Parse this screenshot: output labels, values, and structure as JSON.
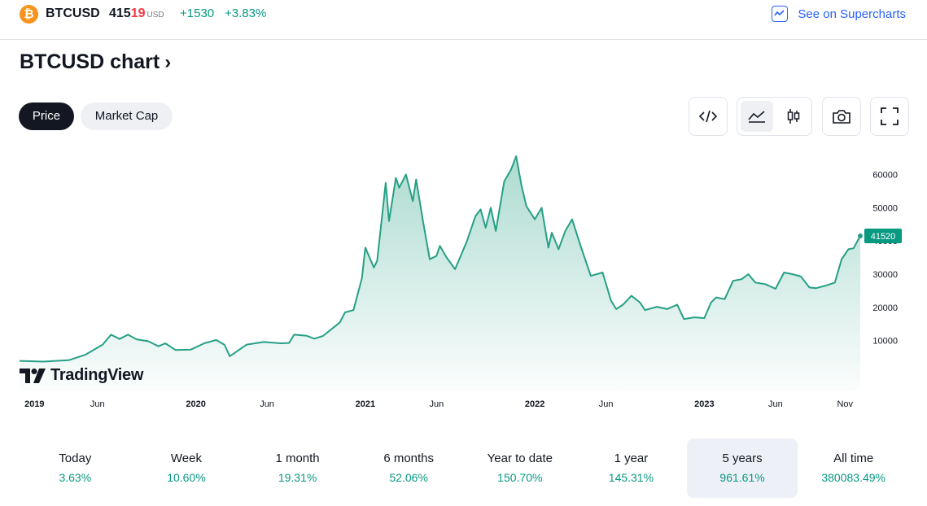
{
  "header": {
    "symbol": "BTCUSD",
    "price_main": "415",
    "price_tail": "19",
    "currency": "USD",
    "change": "+1530",
    "change_percent": "+3.83%",
    "supercharts_label": "See on Supercharts"
  },
  "page_title": "BTCUSD chart",
  "tabs": [
    {
      "label": "Price",
      "active": true
    },
    {
      "label": "Market Cap",
      "active": false
    }
  ],
  "toolbar": {
    "icons": [
      "embed-code-icon",
      "area-chart-icon",
      "candlestick-icon",
      "camera-icon",
      "fullscreen-icon"
    ]
  },
  "branding": {
    "tv_label": "TradingView"
  },
  "colors": {
    "line": "#26a085",
    "up": "#089981",
    "down": "#f23645",
    "accent": "#2962ff"
  },
  "chart_data": {
    "type": "area",
    "x_axis_ticks": [
      "2019",
      "Jun",
      "2020",
      "Jun",
      "2021",
      "Jun",
      "2022",
      "Jun",
      "2023",
      "Jun",
      "Nov"
    ],
    "y_axis_ticks": [
      "10000",
      "20000",
      "30000",
      "40000",
      "50000",
      "60000"
    ],
    "ylim": [
      -5000,
      66000
    ],
    "last_value_label": "41520",
    "series": [
      {
        "values": [
          [
            2018.96,
            3900
          ],
          [
            2019.1,
            3700
          ],
          [
            2019.25,
            4100
          ],
          [
            2019.35,
            5800
          ],
          [
            2019.45,
            8800
          ],
          [
            2019.5,
            11800
          ],
          [
            2019.55,
            10500
          ],
          [
            2019.6,
            11800
          ],
          [
            2019.65,
            10400
          ],
          [
            2019.72,
            9800
          ],
          [
            2019.78,
            8300
          ],
          [
            2019.82,
            9200
          ],
          [
            2019.88,
            7200
          ],
          [
            2019.97,
            7300
          ],
          [
            2020.05,
            9200
          ],
          [
            2020.12,
            10200
          ],
          [
            2020.17,
            8700
          ],
          [
            2020.2,
            5300
          ],
          [
            2020.3,
            8800
          ],
          [
            2020.4,
            9600
          ],
          [
            2020.5,
            9200
          ],
          [
            2020.55,
            9300
          ],
          [
            2020.58,
            11800
          ],
          [
            2020.65,
            11500
          ],
          [
            2020.7,
            10600
          ],
          [
            2020.75,
            11400
          ],
          [
            2020.85,
            15500
          ],
          [
            2020.88,
            18500
          ],
          [
            2020.93,
            19200
          ],
          [
            2020.98,
            28800
          ],
          [
            2021.0,
            38000
          ],
          [
            2021.05,
            32000
          ],
          [
            2021.07,
            34000
          ],
          [
            2021.1,
            48000
          ],
          [
            2021.12,
            57500
          ],
          [
            2021.14,
            46000
          ],
          [
            2021.18,
            59000
          ],
          [
            2021.2,
            56000
          ],
          [
            2021.24,
            60000
          ],
          [
            2021.28,
            52000
          ],
          [
            2021.3,
            58500
          ],
          [
            2021.34,
            46000
          ],
          [
            2021.38,
            34500
          ],
          [
            2021.42,
            35500
          ],
          [
            2021.44,
            38500
          ],
          [
            2021.48,
            35000
          ],
          [
            2021.53,
            31500
          ],
          [
            2021.6,
            40000
          ],
          [
            2021.65,
            47500
          ],
          [
            2021.68,
            49500
          ],
          [
            2021.71,
            44000
          ],
          [
            2021.74,
            50000
          ],
          [
            2021.77,
            43000
          ],
          [
            2021.82,
            58000
          ],
          [
            2021.86,
            61500
          ],
          [
            2021.89,
            65500
          ],
          [
            2021.92,
            57000
          ],
          [
            2021.95,
            50500
          ],
          [
            2022.0,
            46500
          ],
          [
            2022.04,
            50000
          ],
          [
            2022.08,
            38000
          ],
          [
            2022.1,
            42500
          ],
          [
            2022.14,
            37500
          ],
          [
            2022.18,
            43000
          ],
          [
            2022.22,
            46500
          ],
          [
            2022.27,
            38500
          ],
          [
            2022.33,
            29500
          ],
          [
            2022.4,
            30500
          ],
          [
            2022.45,
            22000
          ],
          [
            2022.48,
            19500
          ],
          [
            2022.52,
            20800
          ],
          [
            2022.57,
            23500
          ],
          [
            2022.62,
            21500
          ],
          [
            2022.65,
            19200
          ],
          [
            2022.72,
            20200
          ],
          [
            2022.78,
            19500
          ],
          [
            2022.84,
            20800
          ],
          [
            2022.88,
            16500
          ],
          [
            2022.94,
            17000
          ],
          [
            2023.0,
            16800
          ],
          [
            2023.04,
            21500
          ],
          [
            2023.07,
            23000
          ],
          [
            2023.12,
            22500
          ],
          [
            2023.17,
            28000
          ],
          [
            2023.22,
            28500
          ],
          [
            2023.26,
            30000
          ],
          [
            2023.3,
            27500
          ],
          [
            2023.36,
            27000
          ],
          [
            2023.42,
            25600
          ],
          [
            2023.47,
            30500
          ],
          [
            2023.52,
            30000
          ],
          [
            2023.57,
            29300
          ],
          [
            2023.62,
            26000
          ],
          [
            2023.66,
            25800
          ],
          [
            2023.72,
            26600
          ],
          [
            2023.77,
            27500
          ],
          [
            2023.81,
            34500
          ],
          [
            2023.85,
            37500
          ],
          [
            2023.88,
            37800
          ],
          [
            2023.92,
            41520
          ]
        ]
      }
    ]
  },
  "periods": [
    {
      "label": "Today",
      "value": "3.63%",
      "active": false
    },
    {
      "label": "Week",
      "value": "10.60%",
      "active": false
    },
    {
      "label": "1 month",
      "value": "19.31%",
      "active": false
    },
    {
      "label": "6 months",
      "value": "52.06%",
      "active": false
    },
    {
      "label": "Year to date",
      "value": "150.70%",
      "active": false
    },
    {
      "label": "1 year",
      "value": "145.31%",
      "active": false
    },
    {
      "label": "5 years",
      "value": "961.61%",
      "active": true
    },
    {
      "label": "All time",
      "value": "380083.49%",
      "active": false
    }
  ]
}
